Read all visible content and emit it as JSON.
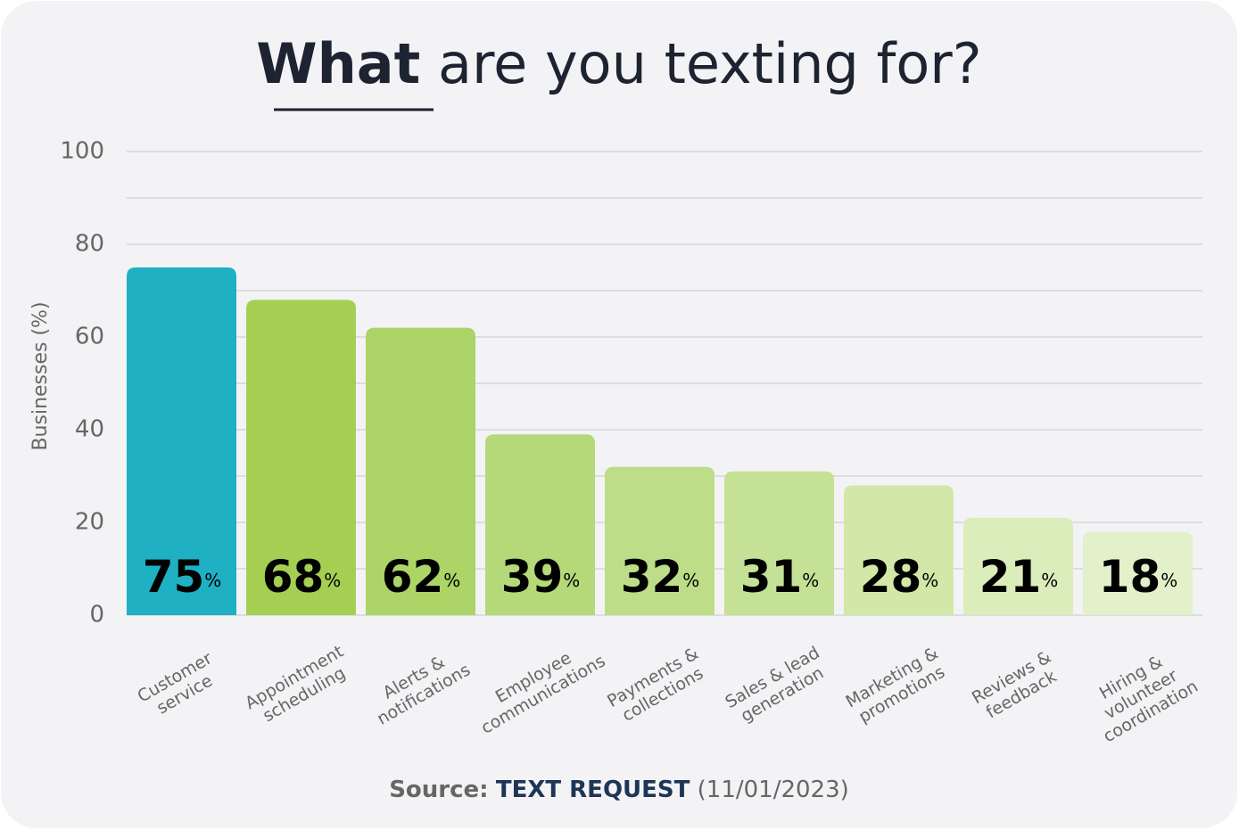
{
  "chart_data": {
    "type": "bar",
    "title_bold": "What",
    "title": "are you texting for?",
    "ylabel": "Businesses  (%)",
    "categories": [
      "Customer\nservice",
      "Appointment\nscheduling",
      "Alerts &\nnotifications",
      "Employee\ncommunications",
      "Payments &\ncollections",
      "Sales & lead\ngeneration",
      "Marketing &\npromotions",
      "Reviews &\nfeedback",
      "Hiring &\nvolunteer\ncoordination"
    ],
    "values": [
      75,
      68,
      62,
      39,
      32,
      31,
      28,
      21,
      18
    ],
    "value_labels": [
      "75%",
      "68%",
      "62%",
      "39%",
      "32%",
      "31%",
      "28%",
      "21%",
      "18%"
    ],
    "colors": [
      "#1fb0c4",
      "#a5cf52",
      "#acd466",
      "#b5d979",
      "#bddd88",
      "#c5e196",
      "#d2e8a9",
      "#dbedbb",
      "#e2f1ca"
    ],
    "ylim": [
      0,
      100
    ],
    "yticks": [
      0,
      20,
      40,
      60,
      80,
      100
    ],
    "minor_gridlines": [
      10,
      30,
      50,
      70,
      90
    ],
    "grid": true,
    "source_label": "Source:",
    "source_name": "TEXT REQUEST",
    "source_date": "(11/01/2023)"
  }
}
